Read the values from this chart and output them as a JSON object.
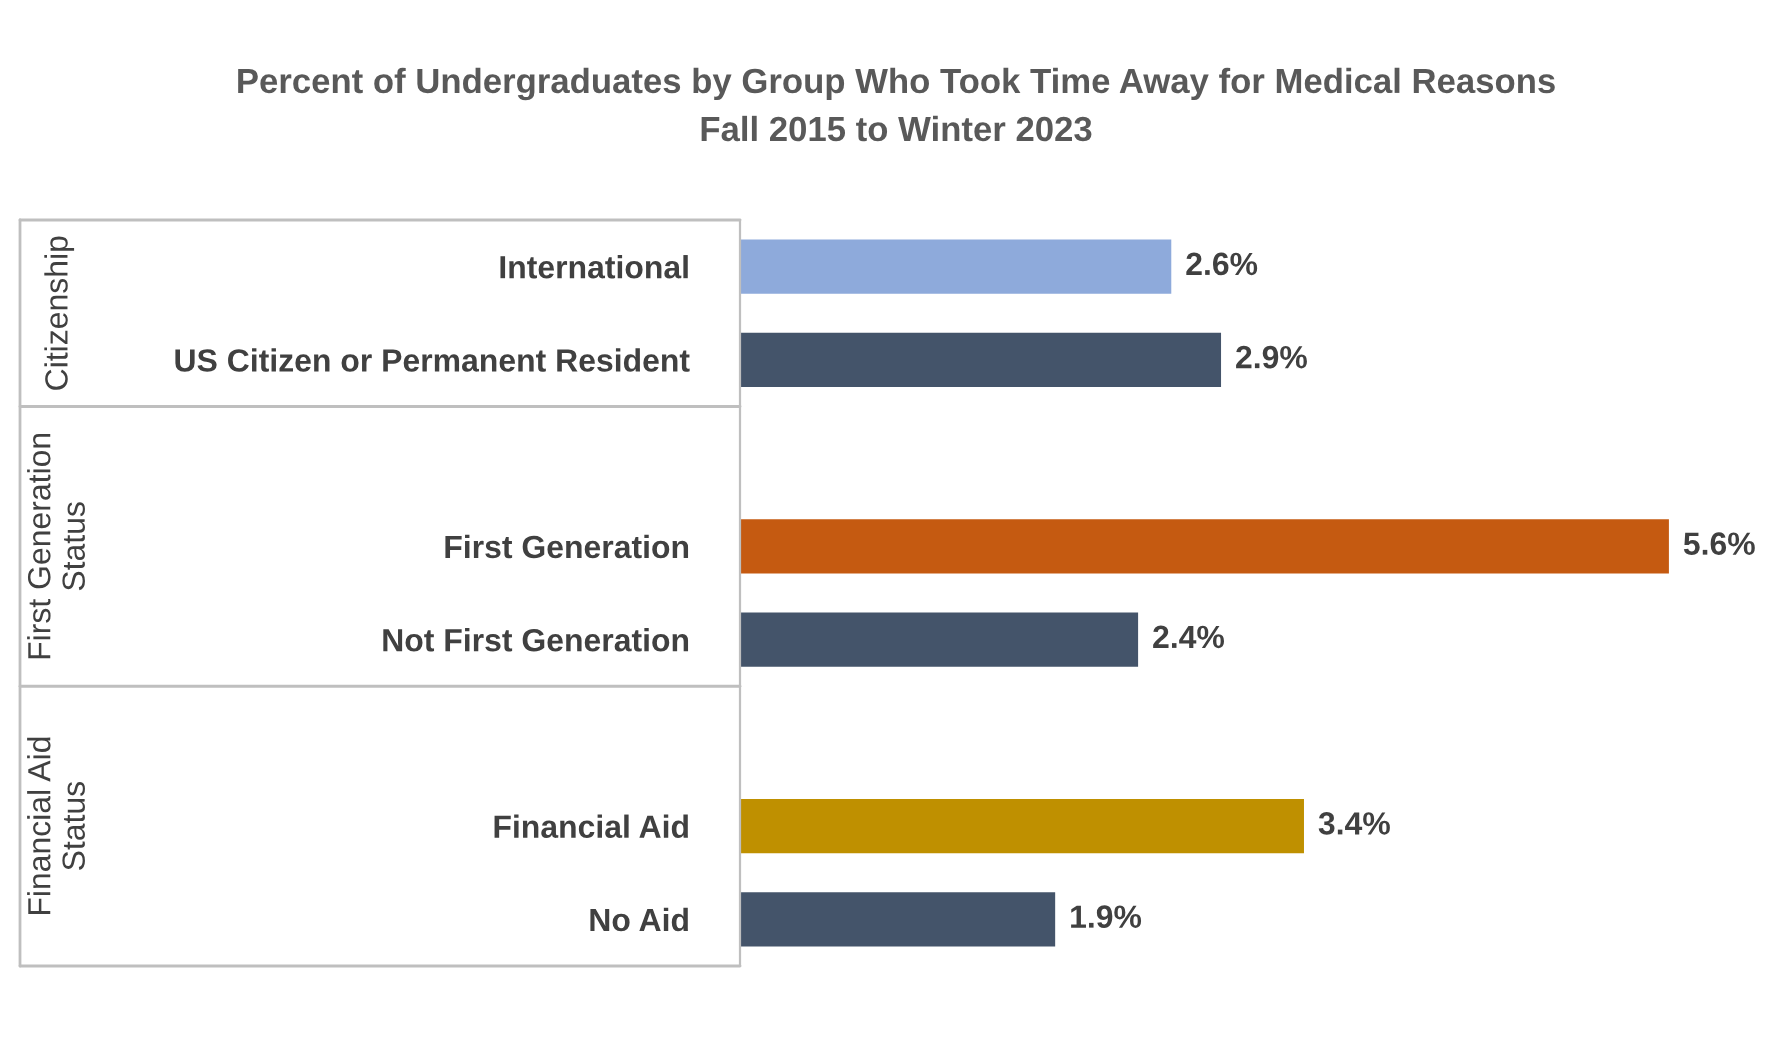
{
  "chart_data": {
    "type": "bar",
    "orientation": "horizontal",
    "title": "Percent of Undergraduates by Group Who Took Time Away for Medical Reasons",
    "subtitle": "Fall 2015 to Winter 2023",
    "categories": [
      "International",
      "US Citizen or Permanent Resident",
      null,
      "First Generation",
      "Not First Generation",
      null,
      "Financial Aid",
      "No Aid"
    ],
    "values": [
      2.6,
      2.9,
      null,
      5.6,
      2.4,
      null,
      3.4,
      1.9
    ],
    "colors": [
      "#8eaadb",
      "#44546a",
      null,
      "#c55a11",
      "#44546a",
      null,
      "#bf9000",
      "#44546a"
    ],
    "value_labels": [
      "2.6%",
      "2.9%",
      null,
      "5.6%",
      "2.4%",
      null,
      "3.4%",
      "1.9%"
    ],
    "annotations": [
      "Citizenship",
      "First Generation\nStatus",
      "Financial Aid\nStatus"
    ]
  }
}
